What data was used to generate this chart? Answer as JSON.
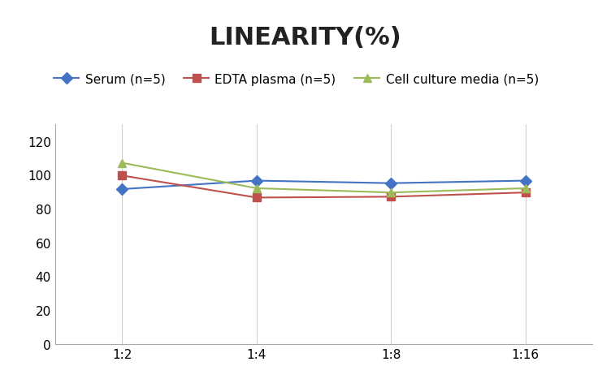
{
  "title": "LINEARITY(%)",
  "title_fontsize": 22,
  "title_fontweight": "bold",
  "x_labels": [
    "1:2",
    "1:4",
    "1:8",
    "1:16"
  ],
  "x_values": [
    0,
    1,
    2,
    3
  ],
  "series": [
    {
      "label": "Serum (n=5)",
      "values": [
        91.5,
        96.5,
        95.0,
        96.5
      ],
      "color": "#4472C4",
      "marker": "D",
      "linewidth": 1.5
    },
    {
      "label": "EDTA plasma (n=5)",
      "values": [
        99.5,
        86.5,
        87.0,
        89.5
      ],
      "color": "#C0504D",
      "marker": "s",
      "linewidth": 1.5
    },
    {
      "label": "Cell culture media (n=5)",
      "values": [
        107.0,
        92.0,
        89.5,
        92.0
      ],
      "color": "#9BBB59",
      "marker": "^",
      "linewidth": 1.5
    }
  ],
  "ylim": [
    0,
    130
  ],
  "yticks": [
    0,
    20,
    40,
    60,
    80,
    100,
    120
  ],
  "grid_color": "#d0d0d0",
  "background_color": "#ffffff",
  "legend_fontsize": 11,
  "tick_fontsize": 11,
  "figsize": [
    7.52,
    4.52
  ],
  "dpi": 100
}
